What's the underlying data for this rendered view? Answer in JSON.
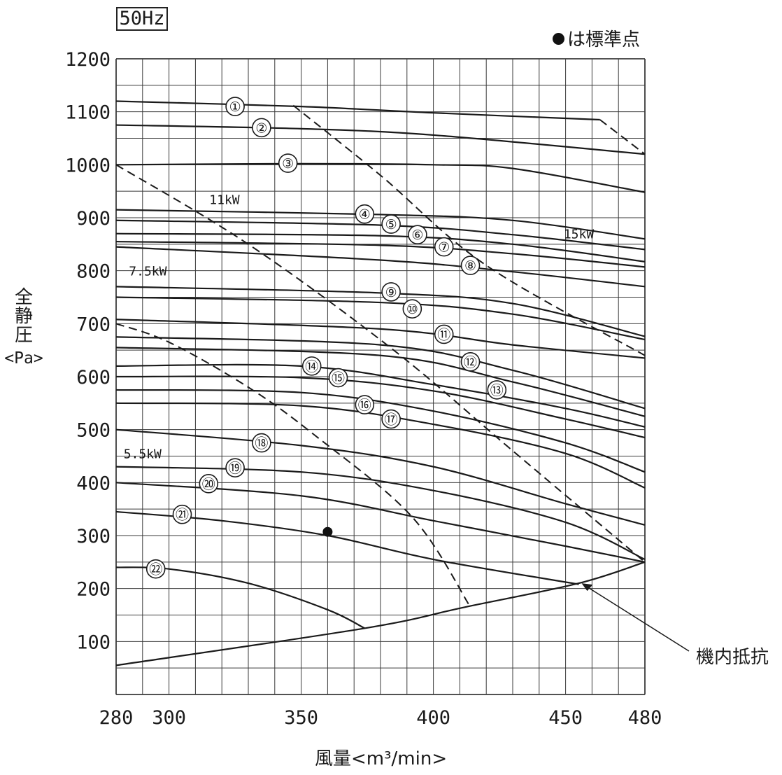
{
  "header": {
    "frequency_label": "50Hz",
    "standard_point_note": "は標準点",
    "standard_point_icon": "filled-circle-icon"
  },
  "axes": {
    "ylabel_lines": [
      "全",
      "静",
      "圧"
    ],
    "ylabel_unit": "<Pa>",
    "xlabel": "風量<m³/min>",
    "x_ticks": [
      "280",
      "300",
      "350",
      "400",
      "450",
      "480"
    ],
    "y_ticks": [
      "100",
      "200",
      "300",
      "400",
      "500",
      "600",
      "700",
      "800",
      "900",
      "1000",
      "1100",
      "1200"
    ]
  },
  "annotation": {
    "machine_resistance": "機内抵抗"
  },
  "chart_data": {
    "type": "line",
    "title": "",
    "xlabel": "風量<m³/min>",
    "ylabel": "全静圧 <Pa>",
    "xlim": [
      280,
      480
    ],
    "ylim": [
      0,
      1200
    ],
    "grid": true,
    "x_grid_step": 10,
    "y_grid_step": 50,
    "series": [
      {
        "name": "1",
        "x": [
          280,
          350,
          400,
          463
        ],
        "y": [
          1120,
          1110,
          1098,
          1085
        ]
      },
      {
        "name": "2",
        "x": [
          280,
          350,
          400,
          480
        ],
        "y": [
          1075,
          1068,
          1056,
          1020
        ]
      },
      {
        "name": "3",
        "x": [
          280,
          350,
          400,
          430,
          480
        ],
        "y": [
          1000,
          1002,
          1000,
          993,
          948
        ]
      },
      {
        "name": "4",
        "x": [
          280,
          380,
          430,
          480
        ],
        "y": [
          915,
          906,
          895,
          860
        ]
      },
      {
        "name": "5",
        "x": [
          280,
          380,
          430,
          480
        ],
        "y": [
          895,
          886,
          868,
          840
        ]
      },
      {
        "name": "6",
        "x": [
          280,
          380,
          430,
          480
        ],
        "y": [
          870,
          866,
          850,
          817
        ]
      },
      {
        "name": "7",
        "x": [
          280,
          380,
          430,
          480
        ],
        "y": [
          855,
          848,
          832,
          807
        ]
      },
      {
        "name": "8",
        "x": [
          280,
          380,
          430,
          480
        ],
        "y": [
          845,
          820,
          798,
          770
        ]
      },
      {
        "name": "9",
        "x": [
          280,
          380,
          430,
          480
        ],
        "y": [
          770,
          758,
          738,
          676
        ]
      },
      {
        "name": "10",
        "x": [
          280,
          380,
          430,
          480
        ],
        "y": [
          750,
          740,
          718,
          670
        ]
      },
      {
        "name": "11",
        "x": [
          280,
          380,
          430,
          480
        ],
        "y": [
          708,
          690,
          660,
          635
        ]
      },
      {
        "name": "12",
        "x": [
          280,
          380,
          430,
          480
        ],
        "y": [
          675,
          660,
          612,
          540
        ]
      },
      {
        "name": "13",
        "x": [
          280,
          380,
          430,
          480
        ],
        "y": [
          655,
          640,
          590,
          525
        ]
      },
      {
        "name": "14",
        "x": [
          280,
          350,
          400,
          450,
          480
        ],
        "y": [
          620,
          620,
          585,
          540,
          505
        ]
      },
      {
        "name": "15",
        "x": [
          280,
          350,
          400,
          450,
          480
        ],
        "y": [
          600,
          598,
          573,
          520,
          485
        ]
      },
      {
        "name": "16",
        "x": [
          280,
          350,
          400,
          450,
          480
        ],
        "y": [
          575,
          570,
          535,
          475,
          420
        ]
      },
      {
        "name": "17",
        "x": [
          280,
          350,
          400,
          450,
          480
        ],
        "y": [
          550,
          545,
          510,
          455,
          390
        ]
      },
      {
        "name": "18",
        "x": [
          280,
          350,
          400,
          450,
          480
        ],
        "y": [
          500,
          470,
          430,
          360,
          320
        ]
      },
      {
        "name": "19",
        "x": [
          280,
          350,
          400,
          450,
          480
        ],
        "y": [
          430,
          420,
          385,
          325,
          255
        ]
      },
      {
        "name": "20",
        "x": [
          280,
          350,
          400,
          450,
          480
        ],
        "y": [
          400,
          375,
          328,
          280,
          250
        ]
      },
      {
        "name": "21",
        "x": [
          280,
          320,
          360,
          400,
          455
        ],
        "y": [
          345,
          328,
          300,
          255,
          208
        ]
      },
      {
        "name": "22",
        "x": [
          280,
          300,
          330,
          360,
          374
        ],
        "y": [
          240,
          237,
          210,
          160,
          125
        ]
      },
      {
        "name": "機内抵抗",
        "x": [
          280,
          374,
          412,
          455,
          480
        ],
        "y": [
          55,
          125,
          165,
          210,
          250
        ]
      }
    ],
    "boundaries": [
      {
        "name": "5.5kW",
        "x": [
          280,
          300,
          330,
          355,
          392,
          414
        ],
        "y": [
          700,
          665,
          580,
          490,
          335,
          165
        ]
      },
      {
        "name": "7.5kW",
        "x": [
          280,
          330,
          385,
          430,
          480
        ],
        "y": [
          1000,
          850,
          650,
          460,
          250
        ]
      },
      {
        "name": "11kW",
        "x": [
          347,
          380,
          420,
          480
        ],
        "y": [
          1112,
          980,
          810,
          640
        ]
      },
      {
        "name": "15kW",
        "x": [
          463,
          480
        ],
        "y": [
          1085,
          1020
        ]
      }
    ],
    "boundary_labels": [
      {
        "text": "5.5kW",
        "x": 290,
        "y": 455
      },
      {
        "text": "7.5kW",
        "x": 292,
        "y": 800
      },
      {
        "text": "11kW",
        "x": 321,
        "y": 935
      },
      {
        "text": "15kW",
        "x": 455,
        "y": 870
      }
    ],
    "curve_labels": [
      {
        "text": "①",
        "x": 325,
        "y": 1110
      },
      {
        "text": "②",
        "x": 335,
        "y": 1070
      },
      {
        "text": "③",
        "x": 345,
        "y": 1003
      },
      {
        "text": "④",
        "x": 374,
        "y": 907
      },
      {
        "text": "⑤",
        "x": 384,
        "y": 888
      },
      {
        "text": "⑥",
        "x": 394,
        "y": 868
      },
      {
        "text": "⑦",
        "x": 404,
        "y": 845
      },
      {
        "text": "⑧",
        "x": 414,
        "y": 810
      },
      {
        "text": "⑨",
        "x": 384,
        "y": 760
      },
      {
        "text": "⑩",
        "x": 392,
        "y": 728
      },
      {
        "text": "⑪",
        "x": 404,
        "y": 680
      },
      {
        "text": "⑫",
        "x": 414,
        "y": 628
      },
      {
        "text": "⑬",
        "x": 424,
        "y": 575
      },
      {
        "text": "⑭",
        "x": 354,
        "y": 620
      },
      {
        "text": "⑮",
        "x": 364,
        "y": 598
      },
      {
        "text": "⑯",
        "x": 374,
        "y": 547
      },
      {
        "text": "⑰",
        "x": 384,
        "y": 520
      },
      {
        "text": "⑱",
        "x": 335,
        "y": 475
      },
      {
        "text": "⑲",
        "x": 325,
        "y": 428
      },
      {
        "text": "⑳",
        "x": 315,
        "y": 398
      },
      {
        "text": "㉑",
        "x": 305,
        "y": 340
      },
      {
        "text": "㉒",
        "x": 295,
        "y": 237
      }
    ],
    "standard_point": {
      "x": 360,
      "y": 307
    },
    "annotation": {
      "text": "機内抵抗",
      "x": 455,
      "y": 210
    }
  },
  "style": {
    "line_color": "#1a1a1a",
    "grid_color": "#3a3a3a",
    "background": "#ffffff"
  }
}
